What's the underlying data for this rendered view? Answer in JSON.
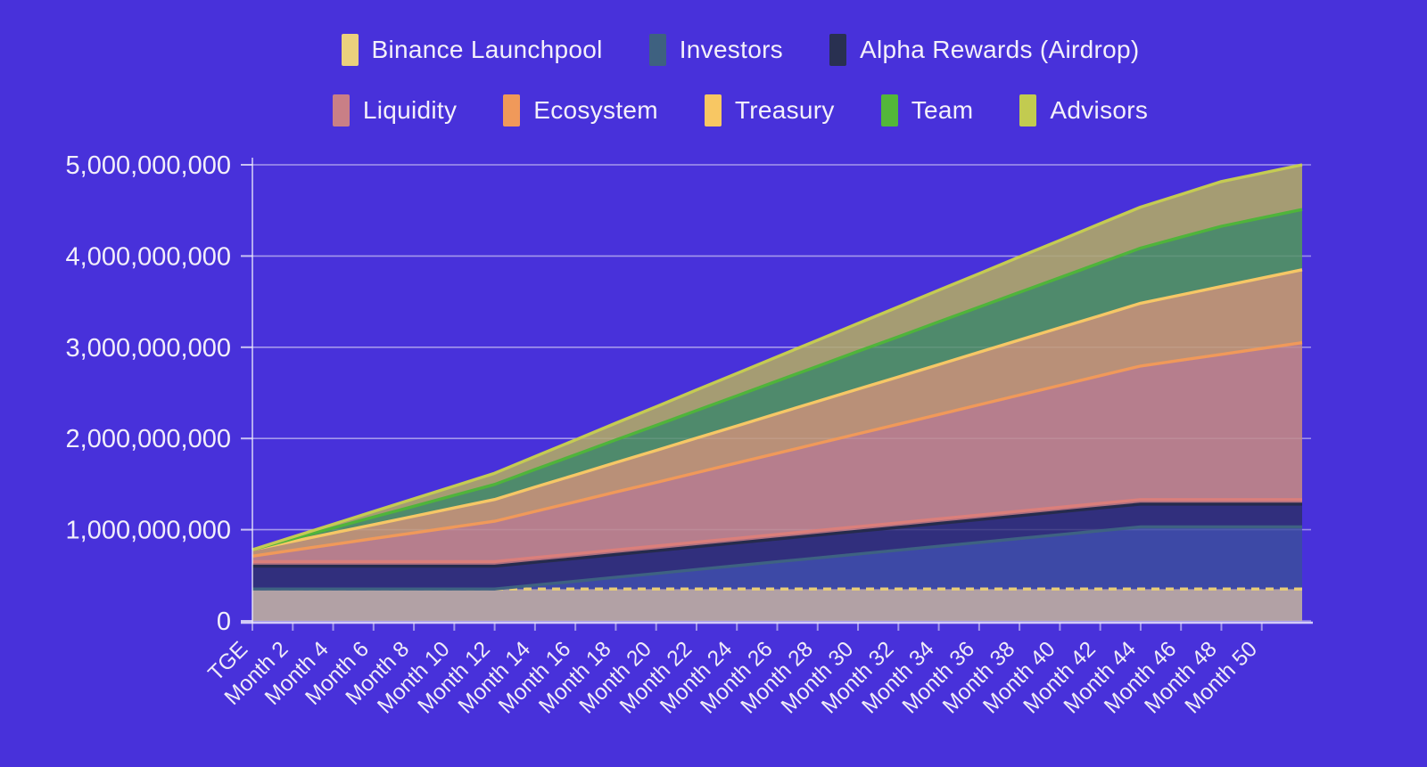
{
  "page": {
    "background_color": "#4831DA",
    "text_color": "#F2EFFA"
  },
  "legend": {
    "rows": [
      {
        "items": [
          {
            "label": "Binance Launchpool",
            "color": "#EBD07D"
          },
          {
            "label": "Investors",
            "color": "#3E6180"
          },
          {
            "label": "Alpha Rewards (Airdrop)",
            "color": "#293051"
          }
        ]
      },
      {
        "items": [
          {
            "label": "Liquidity",
            "color": "#C97F86"
          },
          {
            "label": "Ecosystem",
            "color": "#F0995A"
          },
          {
            "label": "Treasury",
            "color": "#F8C763"
          },
          {
            "label": "Team",
            "color": "#53B73A"
          },
          {
            "label": "Advisors",
            "color": "#C2CB50"
          }
        ]
      }
    ]
  },
  "chart_data": {
    "type": "area",
    "stacked": true,
    "title": "",
    "xlabel": "",
    "ylabel": "",
    "grid": true,
    "legend_position": "top",
    "x_unit": "months since TGE",
    "months": [
      0,
      2,
      4,
      6,
      8,
      10,
      12,
      14,
      16,
      18,
      20,
      22,
      24,
      26,
      28,
      30,
      32,
      34,
      36,
      38,
      40,
      42,
      44,
      46,
      48,
      50,
      52
    ],
    "x_tick_labels": [
      "TGE",
      "Month 2",
      "Month 4",
      "Month 6",
      "Month 8",
      "Month 10",
      "Month 12",
      "Month 14",
      "Month 16",
      "Month 18",
      "Month 20",
      "Month 22",
      "Month 24",
      "Month 26",
      "Month 28",
      "Month 30",
      "Month 32",
      "Month 34",
      "Month 36",
      "Month 38",
      "Month 40",
      "Month 42",
      "Month 44",
      "Month 46",
      "Month 48",
      "Month 50",
      ""
    ],
    "y_max_millions": 5000,
    "y_ticks": [
      {
        "value_millions": 0,
        "label": "0"
      },
      {
        "value_millions": 1000,
        "label": "1,000,000,000"
      },
      {
        "value_millions": 2000,
        "label": "2,000,000,000"
      },
      {
        "value_millions": 3000,
        "label": "3,000,000,000"
      },
      {
        "value_millions": 4000,
        "label": "4,000,000,000"
      },
      {
        "value_millions": 5000,
        "label": "5,000,000,000"
      }
    ],
    "series": [
      {
        "name": "Binance Launchpool",
        "fill": "#B2A1A5",
        "stroke": "#E9CD77",
        "dashed": true,
        "values_millions": [
          350,
          350,
          350,
          350,
          350,
          350,
          350,
          350,
          350,
          350,
          350,
          350,
          350,
          350,
          350,
          350,
          350,
          350,
          350,
          350,
          350,
          350,
          350,
          350,
          350,
          350,
          350
        ]
      },
      {
        "name": "Investors",
        "fill": "#3D49A6",
        "stroke": "#3E6282",
        "dashed": false,
        "values_millions": [
          0,
          0,
          0,
          0,
          0,
          0,
          0,
          43,
          85,
          128,
          170,
          213,
          255,
          298,
          340,
          383,
          425,
          468,
          510,
          553,
          595,
          638,
          680,
          680,
          680,
          680,
          680
        ]
      },
      {
        "name": "Alpha Rewards (Airdrop)",
        "fill": "#312F7D",
        "stroke": "#262B4D",
        "dashed": false,
        "values_millions": [
          250,
          250,
          250,
          250,
          250,
          250,
          250,
          250,
          250,
          250,
          250,
          250,
          250,
          250,
          250,
          250,
          250,
          250,
          250,
          250,
          250,
          250,
          250,
          250,
          250,
          250,
          250
        ]
      },
      {
        "name": "Liquidity",
        "fill": "#AE6F80",
        "stroke": "#DB7F7B",
        "dashed": false,
        "values_millions": [
          50,
          50,
          50,
          50,
          50,
          50,
          50,
          50,
          50,
          50,
          50,
          50,
          50,
          50,
          50,
          50,
          50,
          50,
          50,
          50,
          50,
          50,
          50,
          50,
          50,
          50,
          50
        ]
      },
      {
        "name": "Ecosystem",
        "fill": "#B67E8D",
        "stroke": "#F0995A",
        "dashed": false,
        "values_millions": [
          60,
          124,
          188,
          252,
          315,
          379,
          443,
          507,
          571,
          635,
          698,
          762,
          826,
          890,
          954,
          1018,
          1081,
          1145,
          1209,
          1273,
          1337,
          1400,
          1464,
          1528,
          1592,
          1656,
          1720
        ]
      },
      {
        "name": "Treasury",
        "fill": "#B99078",
        "stroke": "#F6C766",
        "dashed": false,
        "values_millions": [
          70,
          98,
          126,
          154,
          182,
          210,
          238,
          267,
          295,
          323,
          351,
          379,
          407,
          435,
          463,
          491,
          519,
          548,
          576,
          604,
          632,
          660,
          688,
          716,
          744,
          772,
          800
        ]
      },
      {
        "name": "Team",
        "fill": "#4F8A6C",
        "stroke": "#4FB43B",
        "dashed": false,
        "values_millions": [
          0,
          28,
          55,
          83,
          110,
          138,
          165,
          193,
          220,
          248,
          275,
          303,
          330,
          358,
          385,
          413,
          440,
          468,
          495,
          523,
          550,
          578,
          605,
          633,
          660,
          660,
          660
        ]
      },
      {
        "name": "Advisors",
        "fill": "#A59C73",
        "stroke": "#C5CB53",
        "dashed": false,
        "values_millions": [
          0,
          20,
          41,
          61,
          82,
          102,
          123,
          143,
          163,
          184,
          204,
          225,
          245,
          265,
          286,
          306,
          327,
          347,
          367,
          388,
          408,
          429,
          449,
          469,
          490,
          490,
          490
        ]
      }
    ]
  }
}
